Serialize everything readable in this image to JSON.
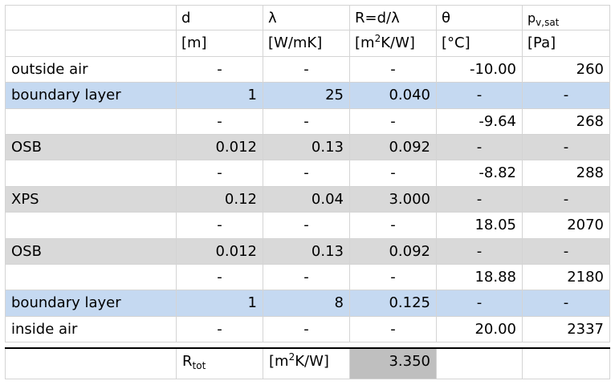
{
  "header": {
    "row1": [
      "",
      "d",
      "λ",
      "R=d/λ",
      "θ",
      "p"
    ],
    "row1_sub": "v,sat",
    "row2": [
      "",
      "[m]",
      "[W/mK]",
      "[m",
      "[°C]",
      "[Pa]"
    ],
    "row2_sup": "2",
    "row2_tail": "K/W]"
  },
  "rows": [
    {
      "style": "white",
      "cells": [
        "outside air",
        "-",
        "-",
        "-",
        "-10.00",
        "260"
      ]
    },
    {
      "style": "blue",
      "cells": [
        "boundary layer",
        "1",
        "25",
        "0.040",
        "-",
        "-"
      ]
    },
    {
      "style": "white",
      "cells": [
        "",
        "-",
        "-",
        "-",
        "-9.64",
        "268"
      ]
    },
    {
      "style": "gray",
      "cells": [
        "OSB",
        "0.012",
        "0.13",
        "0.092",
        "-",
        "-"
      ]
    },
    {
      "style": "white",
      "cells": [
        "",
        "-",
        "-",
        "-",
        "-8.82",
        "288"
      ]
    },
    {
      "style": "gray",
      "cells": [
        "XPS",
        "0.12",
        "0.04",
        "3.000",
        "-",
        "-"
      ]
    },
    {
      "style": "white",
      "cells": [
        "",
        "-",
        "-",
        "-",
        "18.05",
        "2070"
      ]
    },
    {
      "style": "gray",
      "cells": [
        "OSB",
        "0.012",
        "0.13",
        "0.092",
        "-",
        "-"
      ]
    },
    {
      "style": "white",
      "cells": [
        "",
        "-",
        "-",
        "-",
        "18.88",
        "2180"
      ]
    },
    {
      "style": "blue",
      "cells": [
        "boundary layer",
        "1",
        "8",
        "0.125",
        "-",
        "-"
      ]
    },
    {
      "style": "white",
      "cells": [
        "inside air",
        "-",
        "-",
        "-",
        "20.00",
        "2337"
      ]
    }
  ],
  "total": {
    "label": "R",
    "label_sub": "tot",
    "unit": "[m",
    "unit_sup": "2",
    "unit_tail": "K/W]",
    "value": "3.350"
  },
  "colors": {
    "blue_fill": "#c5d9f1",
    "gray_fill": "#d9d9d9",
    "total_fill": "#bfbfbf"
  }
}
